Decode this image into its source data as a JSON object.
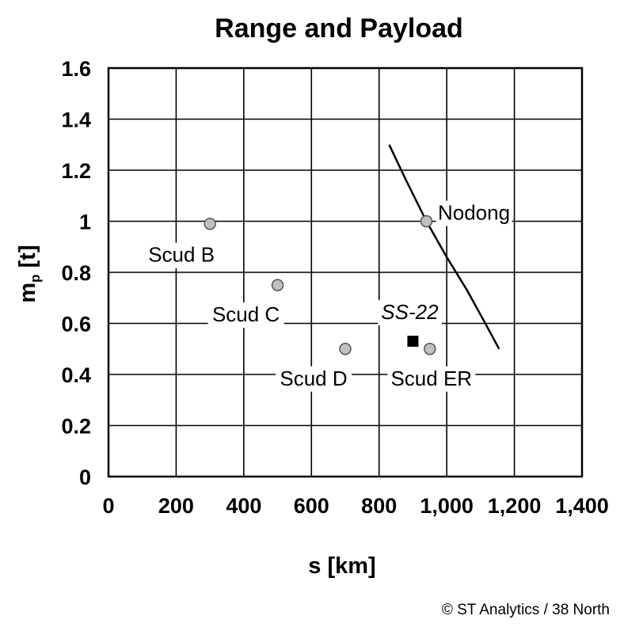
{
  "chart_data": {
    "type": "scatter",
    "title": "Range and Payload",
    "xlabel": "s [km]",
    "ylabel_main": "m",
    "ylabel_sub": "p",
    "ylabel_rest": " [t]",
    "xlim": [
      0,
      1400
    ],
    "ylim": [
      0,
      1.6
    ],
    "x_ticks": [
      0,
      200,
      400,
      600,
      800,
      1000,
      1200,
      1400
    ],
    "x_tick_labels": [
      "0",
      "200",
      "400",
      "600",
      "800",
      "1,000",
      "1,200",
      "1,400"
    ],
    "y_ticks": [
      0,
      0.2,
      0.4,
      0.6,
      0.8,
      1.0,
      1.2,
      1.4,
      1.6
    ],
    "y_tick_labels": [
      "0",
      "0.2",
      "0.4",
      "0.6",
      "0.8",
      "1",
      "1.2",
      "1.4",
      "1.6"
    ],
    "grid": true,
    "points": [
      {
        "label": "Scud B",
        "x": 300,
        "y": 0.99,
        "marker": "circle",
        "color": "#c0c0c0",
        "italic": false
      },
      {
        "label": "Scud C",
        "x": 500,
        "y": 0.75,
        "marker": "circle",
        "color": "#c0c0c0",
        "italic": false
      },
      {
        "label": "Scud D",
        "x": 700,
        "y": 0.5,
        "marker": "circle",
        "color": "#c0c0c0",
        "italic": false
      },
      {
        "label": "Scud ER",
        "x": 950,
        "y": 0.5,
        "marker": "circle",
        "color": "#c0c0c0",
        "italic": false
      },
      {
        "label": "Nodong",
        "x": 940,
        "y": 1.0,
        "marker": "circle",
        "color": "#c0c0c0",
        "italic": false
      },
      {
        "label": "SS-22",
        "x": 900,
        "y": 0.53,
        "marker": "square",
        "color": "#000000",
        "italic": true
      }
    ],
    "curve": {
      "x": [
        830,
        880,
        940,
        1000,
        1060,
        1110,
        1155
      ],
      "y": [
        1.3,
        1.16,
        1.0,
        0.86,
        0.73,
        0.61,
        0.5
      ]
    }
  },
  "credit": "© ST Analytics / 38 North"
}
